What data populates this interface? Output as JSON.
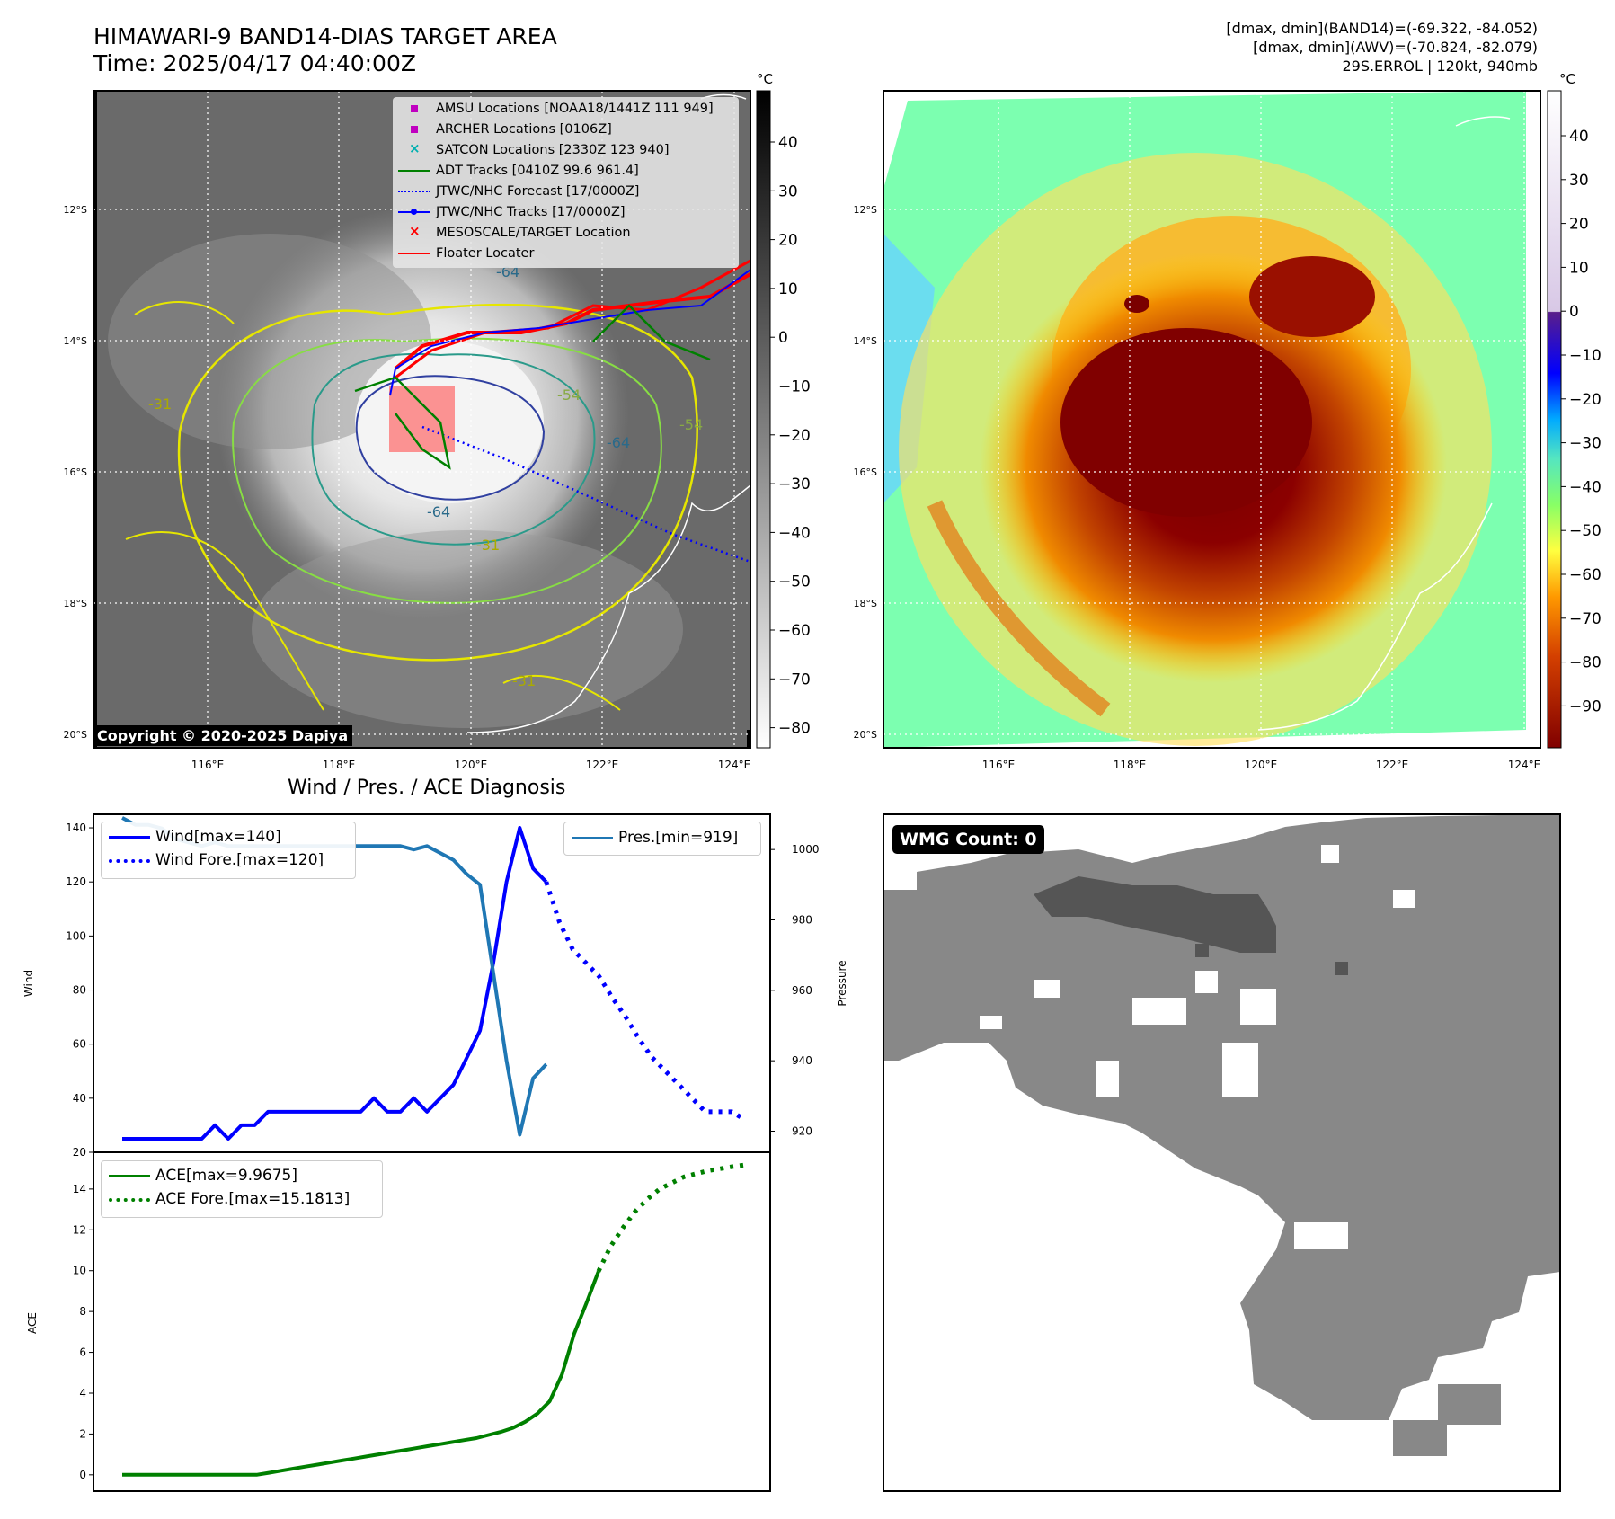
{
  "header": {
    "title_line1": "HIMAWARI-9 BAND14-DIAS TARGET AREA",
    "title_line2": "Time: 2025/04/17 04:40:00Z",
    "right_line1": "[dmax, dmin](BAND14)=(-69.322, -84.052)",
    "right_line2": "[dmax, dmin](AWV)=(-70.824, -82.079)",
    "right_line3": "29S.ERROL | 120kt, 940mb"
  },
  "copyright": "Copyright © 2020-2025 Dapiya",
  "wmg_count": "WMG Count: 0",
  "bottom_title": "Wind / Pres. / ACE Diagnosis",
  "map_axes": {
    "lat_labels": [
      "12°S",
      "14°S",
      "16°S",
      "18°S",
      "20°S"
    ],
    "lon_labels": [
      "116°E",
      "118°E",
      "120°E",
      "122°E",
      "124°E"
    ],
    "colorbar_unit": "°C",
    "gray_colorbar_ticks": [
      "40",
      "30",
      "20",
      "10",
      "0",
      "−10",
      "−20",
      "−30",
      "−40",
      "−50",
      "−60",
      "−70",
      "−80"
    ],
    "color_colorbar_ticks": [
      "40",
      "30",
      "20",
      "10",
      "0",
      "−10",
      "−20",
      "−30",
      "−40",
      "−50",
      "−60",
      "−70",
      "−80",
      "−90"
    ]
  },
  "map_legend": [
    {
      "label": "AMSU Locations [NOAA18/1441Z 111 949]",
      "color": "#c000c0",
      "marker": "square"
    },
    {
      "label": "ARCHER Locations [0106Z]",
      "color": "#c000c0",
      "marker": "square"
    },
    {
      "label": "SATCON Locations [2330Z 123 940]",
      "color": "#00b0b0",
      "marker": "x"
    },
    {
      "label": "ADT Tracks [0410Z 99.6 961.4]",
      "color": "#008000",
      "marker": "line"
    },
    {
      "label": "JTWC/NHC Forecast [17/0000Z]",
      "color": "#0000ff",
      "marker": "dotted"
    },
    {
      "label": "JTWC/NHC Tracks [17/0000Z]",
      "color": "#0000ff",
      "marker": "line-dot"
    },
    {
      "label": "MESOSCALE/TARGET Location",
      "color": "#ff0000",
      "marker": "x"
    },
    {
      "label": "Floater Locater",
      "color": "#ff0000",
      "marker": "line"
    }
  ],
  "contour_labels": [
    "-64",
    "-64",
    "-64",
    "-54",
    "-31",
    "-31",
    "-31",
    "-54"
  ],
  "chart_data": [
    {
      "type": "line",
      "name": "wind-pressure",
      "ylabel": "Wind",
      "y2label": "Pressure",
      "ylim": [
        20,
        145
      ],
      "y2lim": [
        914,
        1010
      ],
      "wind_ticks": [
        20,
        40,
        60,
        80,
        100,
        120,
        140
      ],
      "pressure_ticks": [
        920,
        940,
        960,
        980,
        1000
      ],
      "series": [
        {
          "name": "Wind[max=140]",
          "color": "#0000ff",
          "style": "solid",
          "axis": "left",
          "values": [
            25,
            25,
            25,
            25,
            25,
            25,
            25,
            30,
            25,
            30,
            30,
            35,
            35,
            35,
            35,
            35,
            35,
            35,
            35,
            40,
            35,
            35,
            40,
            35,
            40,
            45,
            55,
            65,
            90,
            120,
            140,
            125,
            120
          ]
        },
        {
          "name": "Wind Fore.[max=120]",
          "color": "#0000ff",
          "style": "dotted",
          "axis": "left",
          "values": [
            null,
            null,
            null,
            null,
            null,
            null,
            null,
            null,
            null,
            null,
            null,
            null,
            null,
            null,
            null,
            null,
            null,
            null,
            null,
            null,
            null,
            null,
            null,
            null,
            null,
            null,
            null,
            null,
            null,
            null,
            null,
            null,
            120,
            105,
            95,
            90,
            85,
            77,
            70,
            62,
            55,
            50,
            45,
            40,
            35,
            35,
            35,
            32
          ]
        },
        {
          "name": "Pres.[min=919]",
          "color": "#1f77b4",
          "style": "solid",
          "axis": "right",
          "values": [
            1009,
            1007,
            1007,
            1006,
            1003,
            1002,
            1001,
            1002,
            1001,
            1001,
            1001,
            1001,
            1001,
            1001,
            1001,
            1001,
            1001,
            1001,
            1001,
            1001,
            1001,
            1001,
            1000,
            1001,
            999,
            997,
            993,
            990,
            965,
            940,
            919,
            935,
            939
          ]
        }
      ]
    },
    {
      "type": "line",
      "name": "ace",
      "ylabel": "ACE",
      "ylim": [
        -0.8,
        15.8
      ],
      "ace_ticks": [
        0,
        2,
        4,
        6,
        8,
        10,
        12,
        14
      ],
      "series": [
        {
          "name": "ACE[max=9.9675]",
          "color": "#008000",
          "style": "solid",
          "values": [
            0,
            0,
            0,
            0,
            0,
            0,
            0,
            0,
            0,
            0,
            0,
            0,
            0.1,
            0.2,
            0.3,
            0.4,
            0.5,
            0.6,
            0.7,
            0.8,
            0.9,
            1.0,
            1.1,
            1.2,
            1.3,
            1.4,
            1.5,
            1.6,
            1.7,
            1.8,
            1.95,
            2.1,
            2.3,
            2.6,
            3.0,
            3.6,
            4.9,
            6.9,
            8.4,
            9.9675
          ]
        },
        {
          "name": "ACE Fore.[max=15.1813]",
          "color": "#008000",
          "style": "dotted",
          "values": [
            null,
            null,
            null,
            null,
            null,
            null,
            null,
            null,
            null,
            null,
            null,
            null,
            null,
            null,
            null,
            null,
            null,
            null,
            null,
            null,
            null,
            null,
            null,
            null,
            null,
            null,
            null,
            null,
            null,
            null,
            null,
            null,
            null,
            null,
            null,
            null,
            null,
            null,
            null,
            9.9675,
            11.2,
            12.1,
            12.9,
            13.5,
            14.0,
            14.3,
            14.6,
            14.75,
            14.9,
            15.0,
            15.1,
            15.1813
          ]
        }
      ]
    }
  ]
}
